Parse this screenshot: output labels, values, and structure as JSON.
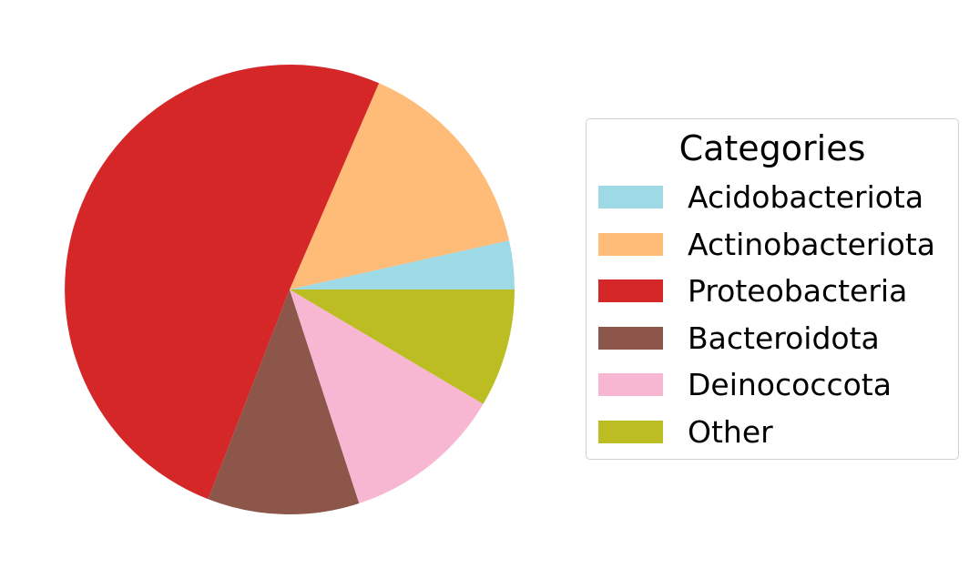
{
  "chart_data": {
    "type": "pie",
    "title": "",
    "legend": {
      "title": "Categories",
      "placement": "right"
    },
    "slices": [
      {
        "label": "Acidobacteriota",
        "value": 3.5,
        "color": "#9edae5"
      },
      {
        "label": "Actinobacteriota",
        "value": 15.0,
        "color": "#ffbb78"
      },
      {
        "label": "Proteobacteria",
        "value": 50.6,
        "color": "#d62728"
      },
      {
        "label": "Bacteroidota",
        "value": 10.9,
        "color": "#8c564b"
      },
      {
        "label": "Deinococcota",
        "value": 11.5,
        "color": "#f7b6d2"
      },
      {
        "label": "Other",
        "value": 8.5,
        "color": "#bcbd22"
      }
    ],
    "start_angle_deg": 0,
    "direction": "counterclockwise"
  }
}
